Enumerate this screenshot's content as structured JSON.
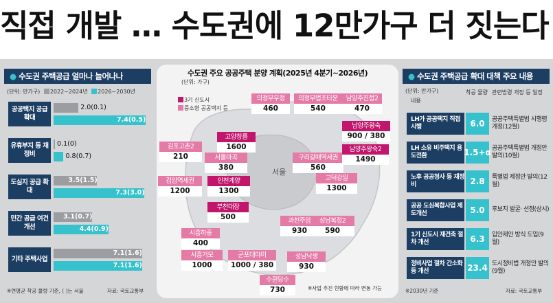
{
  "headline": "직접 개발 … 수도권에 12만가구 더 짓는다",
  "left": {
    "title_dot": "●",
    "title": "수도권 주택공급 얼마나 늘어나나",
    "unit": "(단위: 만가구)",
    "legend_old": "2022~2024년",
    "legend_new": "2026~2030년",
    "colors": {
      "old": "#9b9da0",
      "new": "#35c2cc",
      "label_bg": "#1d3e63"
    },
    "categories": [
      {
        "label": "공공택지 공급 확대",
        "old": 2.0,
        "old_label": "2.0(0.1)",
        "new": 7.4,
        "new_label": "7.4(0.5)"
      },
      {
        "label": "유휴부지 등 재정비",
        "old": 0.1,
        "old_label": "0.1(0)",
        "new": 0.8,
        "new_label": "0.8(0.7)"
      },
      {
        "label": "도심지 공급 확대",
        "old": 3.5,
        "old_label": "3.5(1.5)",
        "new": 7.3,
        "new_label": "7.3(3.0)"
      },
      {
        "label": "민간 공급 여건 개선",
        "old": 3.1,
        "old_label": "3.1(0.7)",
        "new": 4.4,
        "new_label": "4.4(0.9)"
      },
      {
        "label": "기타 주택사업",
        "old": 7.1,
        "old_label": "7.1(1.6)",
        "new": 7.1,
        "new_label": "7.1(1.6)"
      }
    ],
    "note": "※연평균 착공 물량 기준, ( )는 서울",
    "source": "자료: 국토교통부"
  },
  "middle": {
    "title": "수도권 주요 공공주택 분양 계획(2025년 4분기~2026년)",
    "unit": "(단위: 가구)",
    "legend_3": "3기 신도시",
    "legend_m": "중소형 공공택지 등",
    "seoul": "서울",
    "sites": [
      {
        "name": "의정부우정",
        "count": "460",
        "type": "tm"
      },
      {
        "name": "의정부법조타운",
        "count": "540",
        "type": "tm"
      },
      {
        "name": "남양주진접2",
        "count": "470",
        "type": "tm"
      },
      {
        "name": "남양주왕숙",
        "count": "900 / 380",
        "type": "t3"
      },
      {
        "name": "고양창릉",
        "count": "1600",
        "type": "t3"
      },
      {
        "name": "김포고촌2",
        "count": "210",
        "type": "tm"
      },
      {
        "name": "서울마곡",
        "count": "380",
        "type": "tm"
      },
      {
        "name": "구리갈매역세권",
        "count": "560",
        "type": "tm"
      },
      {
        "name": "남양주왕숙2",
        "count": "1490",
        "type": "t3"
      },
      {
        "name": "검암역세권",
        "count": "1200",
        "type": "tm"
      },
      {
        "name": "인천계양",
        "count": "1300",
        "type": "t3"
      },
      {
        "name": "고덕강일",
        "count": "1300",
        "type": "tm"
      },
      {
        "name": "부천대장",
        "count": "500",
        "type": "t3"
      },
      {
        "name": "과천주암",
        "count": "930",
        "type": "tm"
      },
      {
        "name": "성남복정2",
        "count": "590",
        "type": "tm"
      },
      {
        "name": "시흥하중",
        "count": "400",
        "type": "tm"
      },
      {
        "name": "시흥거모",
        "count": "1000",
        "type": "tm"
      },
      {
        "name": "군포대야미",
        "count": "1000 / 380",
        "type": "tm"
      },
      {
        "name": "성남낙생",
        "count": "930",
        "type": "tm"
      },
      {
        "name": "수원당수",
        "count": "730",
        "type": "tm"
      }
    ],
    "colors": {
      "t3": "#c1166b",
      "tm": "#e47aa6"
    },
    "note": "※사업 추진 현황에 따라 변동 가능"
  },
  "right": {
    "title_dot": "●",
    "title": "수도권 주택공급 확대 대책 주요 내용",
    "unit": "(단위: 만가구)",
    "col_name": "내용",
    "col_volume": "착공 물량",
    "col_schedule": "관련법령 개정 등 일정",
    "rows": [
      {
        "name": "LH가 공공택지 직접 시행",
        "volume": "6.0",
        "schedule": "공공주택특별법 시행령 개정(12월)"
      },
      {
        "name": "LH 소유 비주택지 용도전환",
        "volume": "1.5+α",
        "schedule": "공공주택특별법 개정안 발의(10월)"
      },
      {
        "name": "노후 공공청사 등 재정비",
        "volume": "2.8",
        "schedule": "특별법 제정안 발의(12월)"
      },
      {
        "name": "공공 도심복합사업 제도개선",
        "volume": "5.0",
        "schedule": "후보지 발굴· 선정(상시)"
      },
      {
        "name": "1기 신도시 재건축 절차 개선",
        "volume": "6.3",
        "schedule": "입안제안 방식 도입(9월)"
      },
      {
        "name": "정비사업 절차 간소화 등 개선",
        "volume": "23.4",
        "schedule": "도시정비법 개정안 발의(9월)"
      }
    ],
    "note": "※2030년 기준",
    "source": "자료: 국토교통부"
  }
}
